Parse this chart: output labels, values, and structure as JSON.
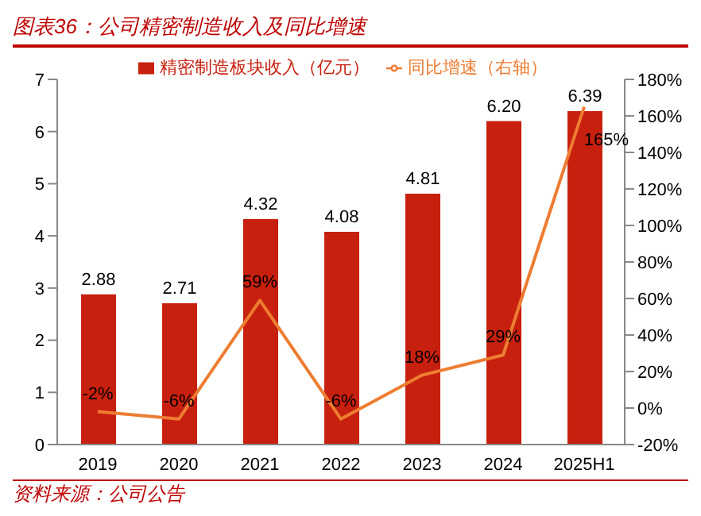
{
  "chart_data": {
    "type": "bar",
    "title": "图表36：公司精密制造收入及同比增速",
    "annotations": [
      "资料来源：公司公告"
    ],
    "categories": [
      "2019",
      "2020",
      "2021",
      "2022",
      "2023",
      "2024",
      "2025H1"
    ],
    "series": [
      {
        "name": "精密制造板块收入（亿元）",
        "color": "#c8200e",
        "values": [
          2.88,
          2.71,
          4.32,
          4.08,
          4.81,
          6.2,
          6.39
        ],
        "value_labels": [
          "2.88",
          "2.71",
          "4.32",
          "4.08",
          "4.81",
          "6.20",
          "6.39"
        ]
      },
      {
        "type": "line",
        "name": "同比增速（右轴）",
        "color": "#ed7d31",
        "axis": "y2",
        "values": [
          -2,
          -6,
          59,
          -6,
          18,
          29,
          165
        ],
        "value_labels": [
          "-2%",
          "-6%",
          "59%",
          "-6%",
          "18%",
          "29%",
          "165%"
        ]
      }
    ],
    "ylim": [
      0,
      7
    ],
    "yticks": [
      0,
      1,
      2,
      3,
      4,
      5,
      6,
      7
    ],
    "y2lim": [
      -20,
      180
    ],
    "y2ticks": [
      {
        "value": -20,
        "label": "-20%"
      },
      {
        "value": 0,
        "label": "0%"
      },
      {
        "value": 20,
        "label": "20%"
      },
      {
        "value": 40,
        "label": "40%"
      },
      {
        "value": 60,
        "label": "60%"
      },
      {
        "value": 80,
        "label": "80%"
      },
      {
        "value": 100,
        "label": "100%"
      },
      {
        "value": 120,
        "label": "120%"
      },
      {
        "value": 140,
        "label": "140%"
      },
      {
        "value": 160,
        "label": "160%"
      },
      {
        "value": 180,
        "label": "180%"
      }
    ],
    "legend": "top",
    "marker": "none"
  }
}
